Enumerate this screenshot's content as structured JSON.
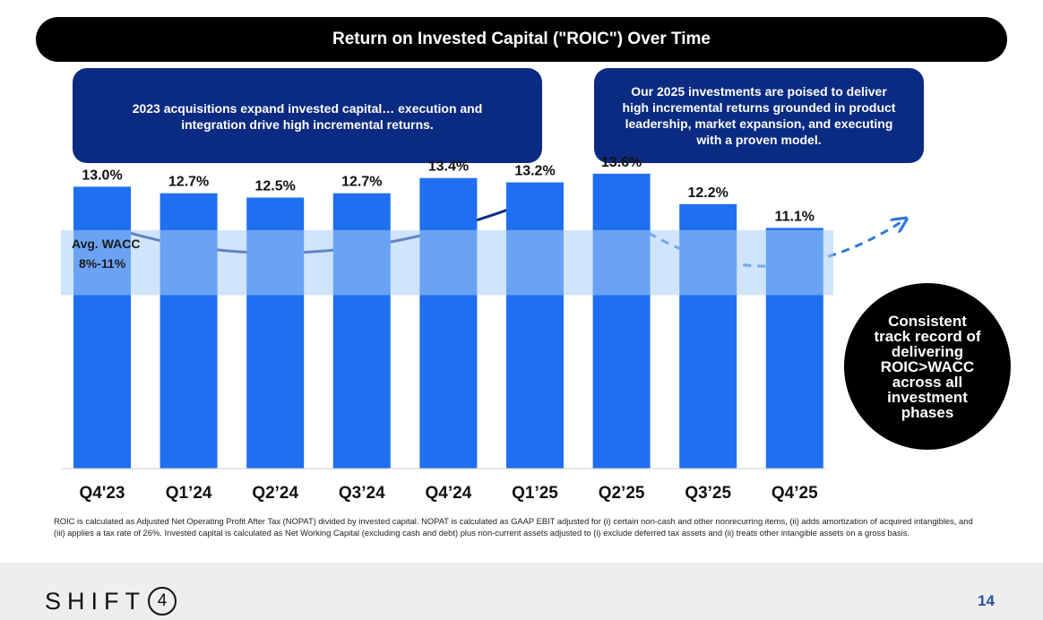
{
  "header": {
    "title": "Return on Invested Capital (\"ROIC\") Over Time"
  },
  "callouts": {
    "left": [
      "2023 acquisitions expand invested capital… execution and",
      "integration drive high incremental returns."
    ],
    "right": [
      "Our 2025 investments are poised to deliver",
      "high incremental returns grounded in product",
      "leadership, market expansion, and executing",
      "with a proven model."
    ]
  },
  "chart_data": {
    "type": "bar",
    "title": "",
    "xlabel": "",
    "ylabel": "",
    "ylim": [
      0,
      15
    ],
    "categories": [
      "Q4'23",
      "Q1’24",
      "Q2’24",
      "Q3’24",
      "Q4’24",
      "Q1’25",
      "Q2’25",
      "Q3’25",
      "Q4’25"
    ],
    "values": [
      13.0,
      12.7,
      12.5,
      12.7,
      13.4,
      13.2,
      13.6,
      12.2,
      11.1
    ],
    "value_labels": [
      "13.0%",
      "12.7%",
      "12.5%",
      "12.7%",
      "13.4%",
      "13.2%",
      "13.6%",
      "12.2%",
      "11.1%"
    ],
    "bar_color": "#1f6ff0",
    "band": {
      "label_line1": "Avg. WACC",
      "label_line2": "8%-11%",
      "range": [
        8,
        11
      ],
      "color": "#a9cdf7"
    },
    "grid": false
  },
  "badge": {
    "lines": [
      "Consistent",
      "track record of",
      "delivering",
      "ROIC>WACC",
      "across all",
      "investment",
      "phases"
    ]
  },
  "footnote": "ROIC is calculated as Adjusted Net Operating Profit After Tax (NOPAT) divided by invested capital. NOPAT is calculated as GAAP EBIT adjusted for (i) certain non-cash and other nonrecurring items, (ii) adds amortization of acquired intangibles, and (iii) applies a tax rate of 26%. Invested capital is calculated as Net Working Capital (excluding cash and debt) plus non-current assets adjusted to (i) exclude deferred tax assets and (ii) treats other intangible assets on a gross basis.",
  "footer": {
    "logo_text": "SHIFT",
    "logo_mark": "4",
    "page_number": "14"
  },
  "colors": {
    "navy": "#0b2a82",
    "arrow": "#0b2a82",
    "dashed_arrow": "#2f7ad9"
  }
}
